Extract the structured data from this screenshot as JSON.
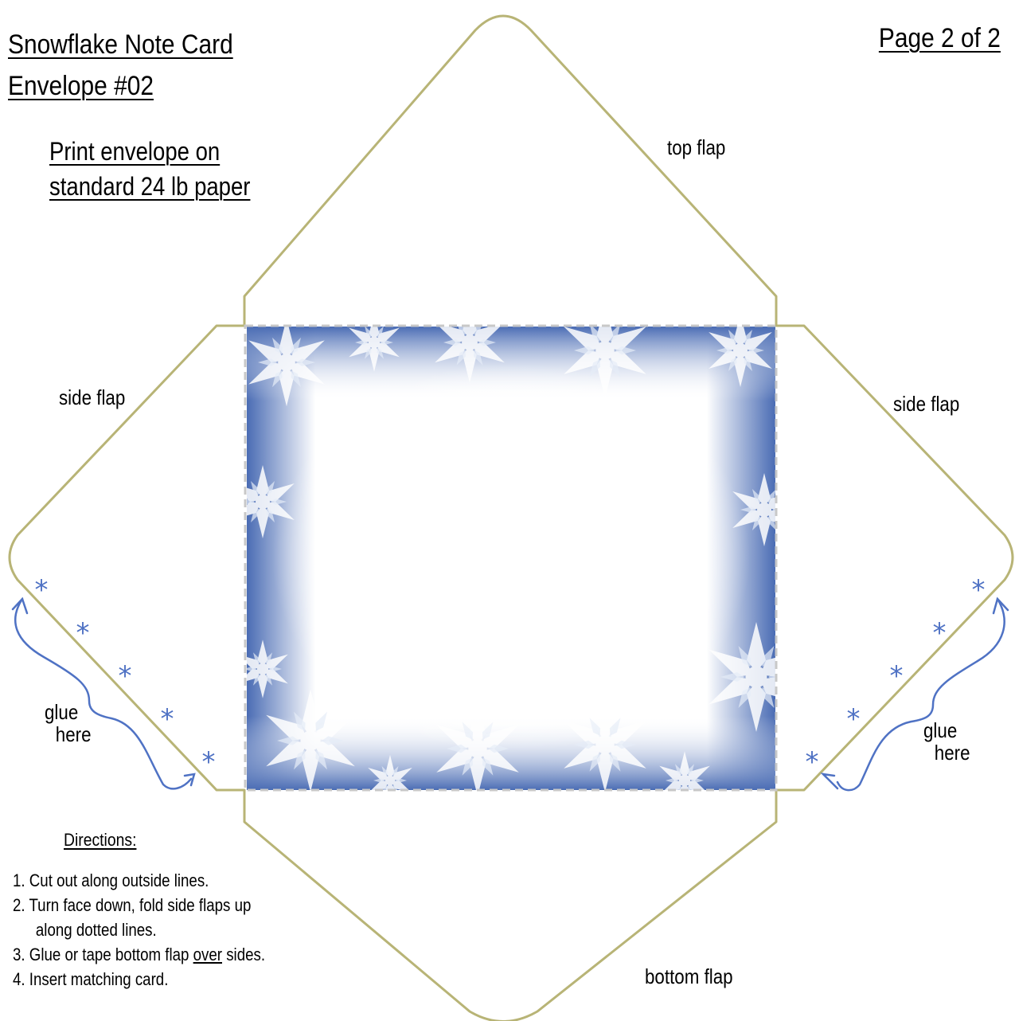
{
  "header": {
    "title_line1": "Snowflake Note Card",
    "title_line2": "Envelope #02",
    "page_indicator": "Page 2 of 2"
  },
  "print_note": {
    "line1": "Print envelope on",
    "line2": "standard 24 lb paper"
  },
  "flaps": {
    "top": "top flap",
    "bottom": "bottom flap",
    "left_side": "side flap",
    "right_side": "side flap"
  },
  "glue": {
    "left_line1": "glue",
    "left_line2": "here",
    "right_line1": "glue",
    "right_line2": "here",
    "marker": "*"
  },
  "directions": {
    "title": "Directions:",
    "step1": "1. Cut out along outside lines.",
    "step2_line1": "2. Turn face down, fold side flaps up",
    "step2_line2": "along dotted lines.",
    "step3_before": "3. Glue or tape bottom flap ",
    "step3_emphasis": "over",
    "step3_after": " sides.",
    "step4": "4. Insert matching card."
  },
  "colors": {
    "cut_line": "#b8b476",
    "fold_line": "#c8c8c8",
    "glue_marker": "#4f72c4",
    "panel_edge": "#4a6cb4",
    "panel_center": "#ffffff",
    "snowflake": "#ffffff"
  }
}
